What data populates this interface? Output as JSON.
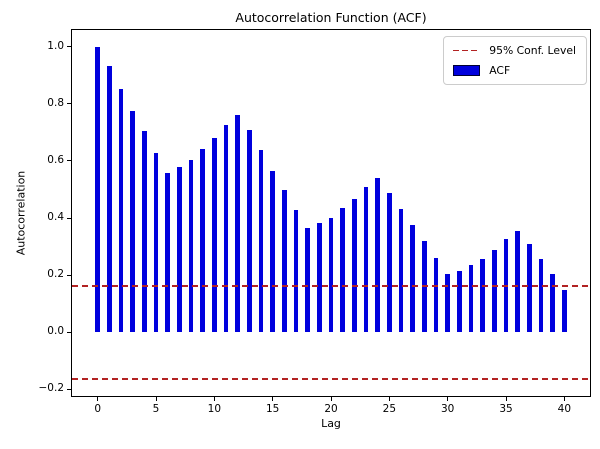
{
  "chart_data": {
    "type": "bar",
    "title": "Autocorrelation Function (ACF)",
    "xlabel": "Lag",
    "ylabel": "Autocorrelation",
    "x": [
      0,
      1,
      2,
      3,
      4,
      5,
      6,
      7,
      8,
      9,
      10,
      11,
      12,
      13,
      14,
      15,
      16,
      17,
      18,
      19,
      20,
      21,
      22,
      23,
      24,
      25,
      26,
      27,
      28,
      29,
      30,
      31,
      32,
      33,
      34,
      35,
      36,
      37,
      38,
      39,
      40
    ],
    "values": [
      1.0,
      0.931,
      0.85,
      0.773,
      0.706,
      0.628,
      0.559,
      0.577,
      0.604,
      0.64,
      0.68,
      0.727,
      0.762,
      0.709,
      0.637,
      0.564,
      0.498,
      0.429,
      0.366,
      0.381,
      0.401,
      0.434,
      0.468,
      0.51,
      0.541,
      0.489,
      0.433,
      0.377,
      0.32,
      0.261,
      0.205,
      0.214,
      0.234,
      0.258,
      0.289,
      0.325,
      0.354,
      0.31,
      0.258,
      0.204,
      0.149
    ],
    "bar_color": "#0000dd",
    "bar_width_units": 0.4,
    "conf_level": 0.163,
    "conf_line_color": "#b22222",
    "conf_line_style": "dashed",
    "xlim": [
      -2.2,
      42.2
    ],
    "ylim": [
      -0.223,
      1.058
    ],
    "xticks": [
      0,
      5,
      10,
      15,
      20,
      25,
      30,
      35,
      40
    ],
    "yticks": [
      -0.2,
      0.0,
      0.2,
      0.4,
      0.6,
      0.8,
      1.0
    ],
    "ytick_labels": [
      "−0.2",
      "0.0",
      "0.2",
      "0.4",
      "0.6",
      "0.8",
      "1.0"
    ],
    "grid": false,
    "legend_position": "upper right",
    "legend": [
      {
        "label": "95% Conf. Level",
        "swatch": "dashed-line",
        "color": "#b22222"
      },
      {
        "label": "ACF",
        "swatch": "patch",
        "color": "#0000dd"
      }
    ]
  }
}
